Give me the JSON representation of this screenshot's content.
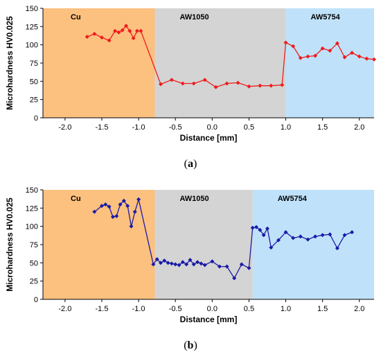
{
  "chart_data": [
    {
      "id": "a",
      "type": "line",
      "xlabel": "Distance [mm]",
      "ylabel": "Microhardness HV0.025",
      "xlim": [
        -2.3,
        2.2
      ],
      "ylim": [
        0,
        150
      ],
      "xticks": [
        -2.0,
        -1.5,
        -1.0,
        -0.5,
        0.0,
        0.5,
        1.0,
        1.5,
        2.0
      ],
      "xtick_labels": [
        "-2.0",
        "-1.5",
        "-1.0",
        "-0.5",
        "0.0",
        "0.5",
        "1.0",
        "1.5",
        "2.0"
      ],
      "yticks": [
        0,
        25,
        50,
        75,
        100,
        125,
        150
      ],
      "ytick_labels": [
        "0",
        "25",
        "50",
        "75",
        "100",
        "125",
        "150"
      ],
      "grid": false,
      "regions": [
        {
          "label": "Cu",
          "x_start": -2.3,
          "x_end": -0.78,
          "color": "#fcc07f"
        },
        {
          "label": "AW1050",
          "x_start": -0.78,
          "x_end": 1.0,
          "color": "#d4d4d4"
        },
        {
          "label": "AW5754",
          "x_start": 1.0,
          "x_end": 2.2,
          "color": "#bfe2fa"
        }
      ],
      "series": [
        {
          "color": "#ee1c1c",
          "x": [
            -1.7,
            -1.6,
            -1.5,
            -1.4,
            -1.32,
            -1.27,
            -1.22,
            -1.17,
            -1.12,
            -1.07,
            -1.02,
            -0.97,
            -0.7,
            -0.55,
            -0.4,
            -0.25,
            -0.1,
            0.05,
            0.2,
            0.35,
            0.5,
            0.65,
            0.8,
            0.95,
            1.0,
            1.1,
            1.2,
            1.3,
            1.4,
            1.5,
            1.6,
            1.7,
            1.8,
            1.9,
            2.0,
            2.1,
            2.2
          ],
          "y": [
            111,
            115,
            110,
            106,
            119,
            117,
            120,
            126,
            119,
            109,
            119,
            119,
            46,
            52,
            47,
            47,
            52,
            42,
            47,
            48,
            43,
            44,
            44,
            45,
            103,
            98,
            82,
            84,
            85,
            95,
            92,
            102,
            83,
            89,
            84,
            81,
            80
          ]
        }
      ],
      "panel_label": "a"
    },
    {
      "id": "b",
      "type": "line",
      "xlabel": "Distance [mm]",
      "ylabel": "Microhardness HV0.025",
      "xlim": [
        -2.3,
        2.2
      ],
      "ylim": [
        0,
        150
      ],
      "xticks": [
        -2.0,
        -1.5,
        -1.0,
        -0.5,
        0.0,
        0.5,
        1.0,
        1.5,
        2.0
      ],
      "xtick_labels": [
        "-2.0",
        "-1.5",
        "-1.0",
        "-0.5",
        "0.0",
        "0.5",
        "1.0",
        "1.5",
        "2.0"
      ],
      "yticks": [
        0,
        25,
        50,
        75,
        100,
        125,
        150
      ],
      "ytick_labels": [
        "0",
        "25",
        "50",
        "75",
        "100",
        "125",
        "150"
      ],
      "grid": false,
      "regions": [
        {
          "label": "Cu",
          "x_start": -2.3,
          "x_end": -0.78,
          "color": "#fcc07f"
        },
        {
          "label": "AW1050",
          "x_start": -0.78,
          "x_end": 0.55,
          "color": "#d4d4d4"
        },
        {
          "label": "AW5754",
          "x_start": 0.55,
          "x_end": 2.2,
          "color": "#bfe2fa"
        }
      ],
      "series": [
        {
          "color": "#1a1aa6",
          "x": [
            -1.6,
            -1.5,
            -1.45,
            -1.4,
            -1.35,
            -1.3,
            -1.25,
            -1.2,
            -1.15,
            -1.1,
            -1.05,
            -1.0,
            -0.8,
            -0.75,
            -0.7,
            -0.65,
            -0.6,
            -0.55,
            -0.5,
            -0.45,
            -0.4,
            -0.35,
            -0.3,
            -0.25,
            -0.2,
            -0.15,
            -0.1,
            0.0,
            0.1,
            0.2,
            0.3,
            0.4,
            0.5,
            0.55,
            0.6,
            0.65,
            0.7,
            0.75,
            0.8,
            0.9,
            1.0,
            1.1,
            1.2,
            1.3,
            1.4,
            1.5,
            1.6,
            1.7,
            1.8,
            1.9
          ],
          "y": [
            120,
            128,
            130,
            127,
            113,
            114,
            130,
            135,
            128,
            100,
            120,
            137,
            48,
            55,
            50,
            53,
            50,
            49,
            48,
            47,
            51,
            48,
            54,
            48,
            51,
            49,
            47,
            52,
            45,
            45,
            29,
            48,
            43,
            98,
            99,
            95,
            88,
            97,
            71,
            81,
            92,
            84,
            86,
            82,
            86,
            88,
            89,
            70,
            88,
            92
          ]
        }
      ],
      "panel_label": "b"
    }
  ]
}
